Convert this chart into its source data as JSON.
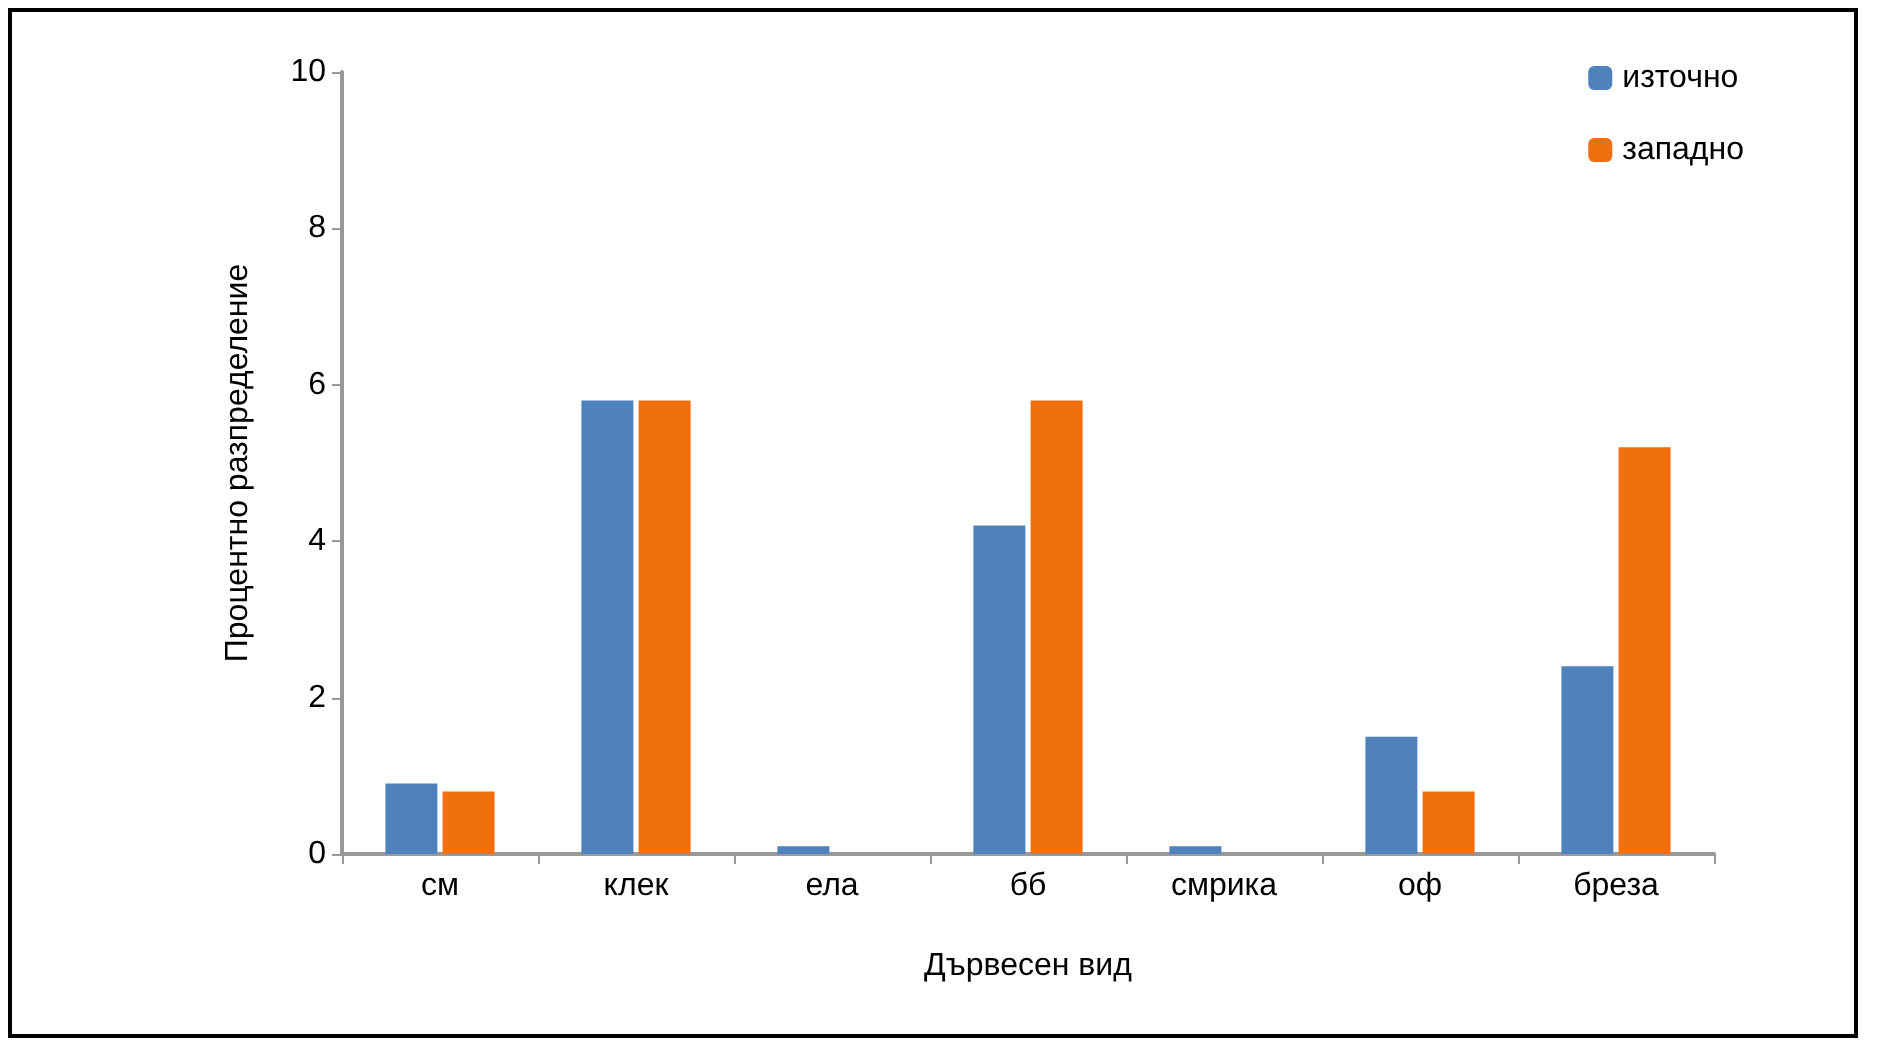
{
  "chart_data": {
    "type": "bar",
    "xlabel": "Дървесен вид",
    "ylabel": "Процентно разпределение",
    "categories": [
      "см",
      "клек",
      "ела",
      "бб",
      "смрика",
      "оф",
      "бреза"
    ],
    "series": [
      {
        "name": "източно",
        "color": "#4f81bd",
        "values": [
          0.9,
          5.8,
          0.1,
          4.2,
          0.1,
          1.5,
          2.4
        ]
      },
      {
        "name": "западно",
        "color": "#f07010",
        "values": [
          0.8,
          5.8,
          0,
          5.8,
          0,
          0.8,
          5.2
        ]
      }
    ],
    "ylim": [
      0,
      10
    ],
    "yticks": [
      0,
      2,
      4,
      6,
      8,
      10
    ],
    "grid": false,
    "legend": "top right"
  }
}
